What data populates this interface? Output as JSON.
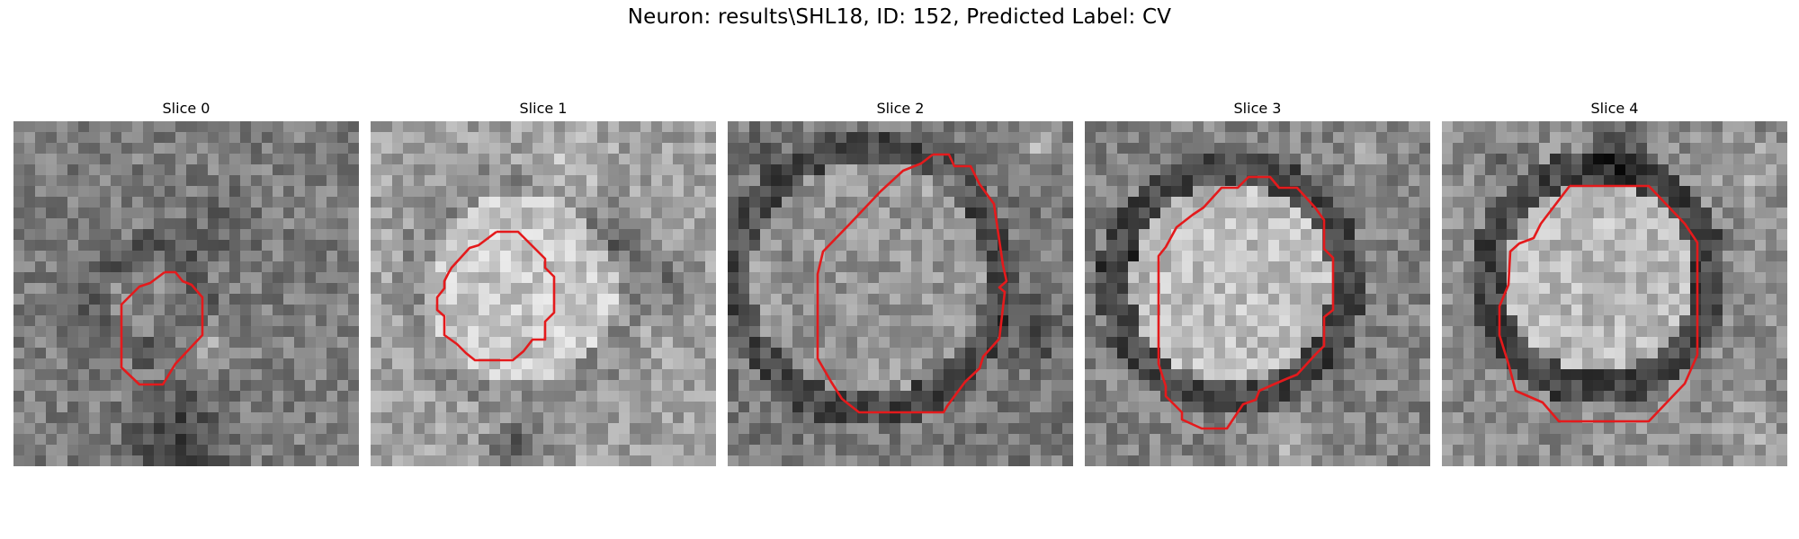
{
  "figure": {
    "title": "Neuron: results\\SHL18, ID: 152, Predicted Label: CV",
    "contour_color": "#e41a1c"
  },
  "slices": [
    {
      "label": "Slice 0"
    },
    {
      "label": "Slice 1"
    },
    {
      "label": "Slice 2"
    },
    {
      "label": "Slice 3"
    },
    {
      "label": "Slice 4"
    }
  ]
}
